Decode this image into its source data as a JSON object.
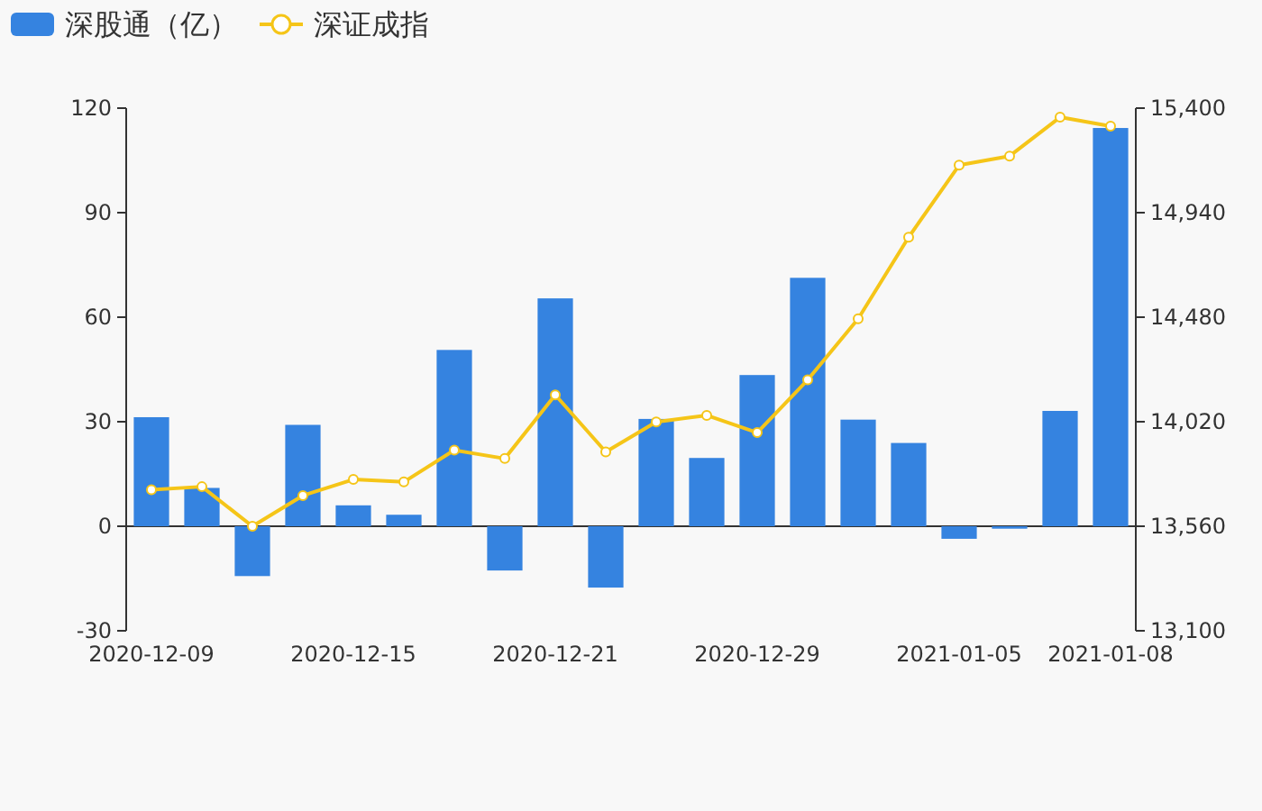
{
  "chart_data": {
    "type": "bar",
    "categories": [
      "2020-12-09",
      null,
      null,
      null,
      "2020-12-15",
      null,
      null,
      null,
      "2020-12-21",
      null,
      null,
      null,
      "2020-12-29",
      null,
      null,
      null,
      "2021-01-05",
      null,
      null,
      "2021-01-08"
    ],
    "series": [
      {
        "name": "深股通（亿）",
        "color": "#3583e0",
        "values": [
          31.3,
          11.0,
          -14.3,
          29.1,
          6.0,
          3.3,
          50.6,
          -12.7,
          65.4,
          -17.6,
          30.8,
          19.6,
          43.4,
          71.3,
          30.6,
          23.9,
          -3.6,
          -0.7,
          33.1,
          114.3
        ]
      },
      {
        "name": "深证成指",
        "type": "line",
        "axis": "y2",
        "color": "#f5c518",
        "marker": "circle",
        "values": [
          13721,
          13734,
          13560,
          13695,
          13766,
          13755,
          13895,
          13858,
          14138,
          13887,
          14019,
          14048,
          13972,
          14204,
          14473,
          14832,
          15149,
          15189,
          15360,
          15321
        ]
      }
    ],
    "ylim": [
      -30,
      120
    ],
    "yticks": [
      -30,
      0,
      30,
      60,
      90,
      120
    ],
    "y2lim": [
      13100,
      15400
    ],
    "y2ticks": [
      {
        "value": 13100,
        "label": "13,100"
      },
      {
        "value": 13560,
        "label": "13,560"
      },
      {
        "value": 14020,
        "label": "14,020"
      },
      {
        "value": 14480,
        "label": "14,480"
      },
      {
        "value": 14940,
        "label": "14,940"
      },
      {
        "value": 15400,
        "label": "15,400"
      }
    ],
    "legend": "top left"
  }
}
